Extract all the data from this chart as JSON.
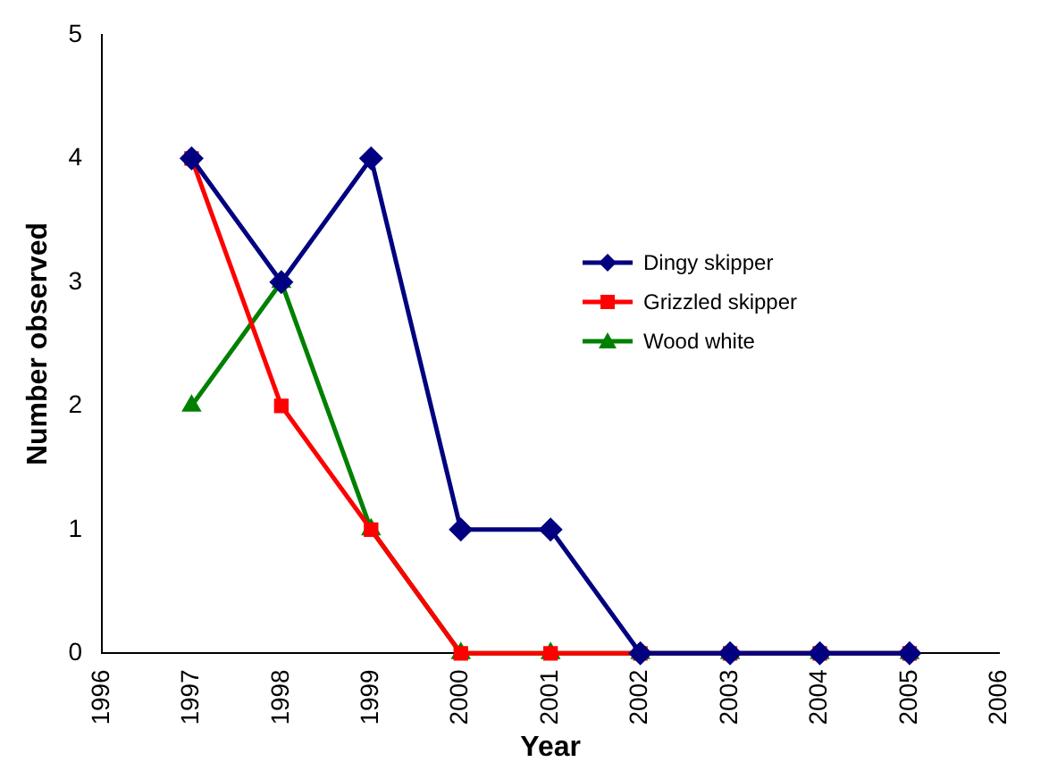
{
  "chart_data": {
    "type": "line",
    "xlabel": "Year",
    "ylabel": "Number observed",
    "x": [
      1997,
      1998,
      1999,
      2000,
      2001,
      2002,
      2003,
      2004,
      2005
    ],
    "xlim": [
      1996,
      2006
    ],
    "xticks": [
      1996,
      1997,
      1998,
      1999,
      2000,
      2001,
      2002,
      2003,
      2004,
      2005,
      2006
    ],
    "ylim": [
      0,
      5
    ],
    "yticks": [
      0,
      1,
      2,
      3,
      4,
      5
    ],
    "grid": false,
    "legend": "right",
    "series": [
      {
        "name": "Dingy skipper",
        "color": "#000080",
        "marker": "diamond",
        "values": [
          4,
          3,
          4,
          1,
          1,
          0,
          0,
          0,
          0
        ]
      },
      {
        "name": "Grizzled skipper",
        "color": "#ff0000",
        "marker": "square",
        "values": [
          4,
          2,
          1,
          0,
          0,
          0,
          0,
          0,
          0
        ]
      },
      {
        "name": "Wood white",
        "color": "#008000",
        "marker": "triangle",
        "values": [
          2,
          3,
          1,
          0,
          0,
          0,
          0,
          0,
          0
        ]
      }
    ]
  }
}
